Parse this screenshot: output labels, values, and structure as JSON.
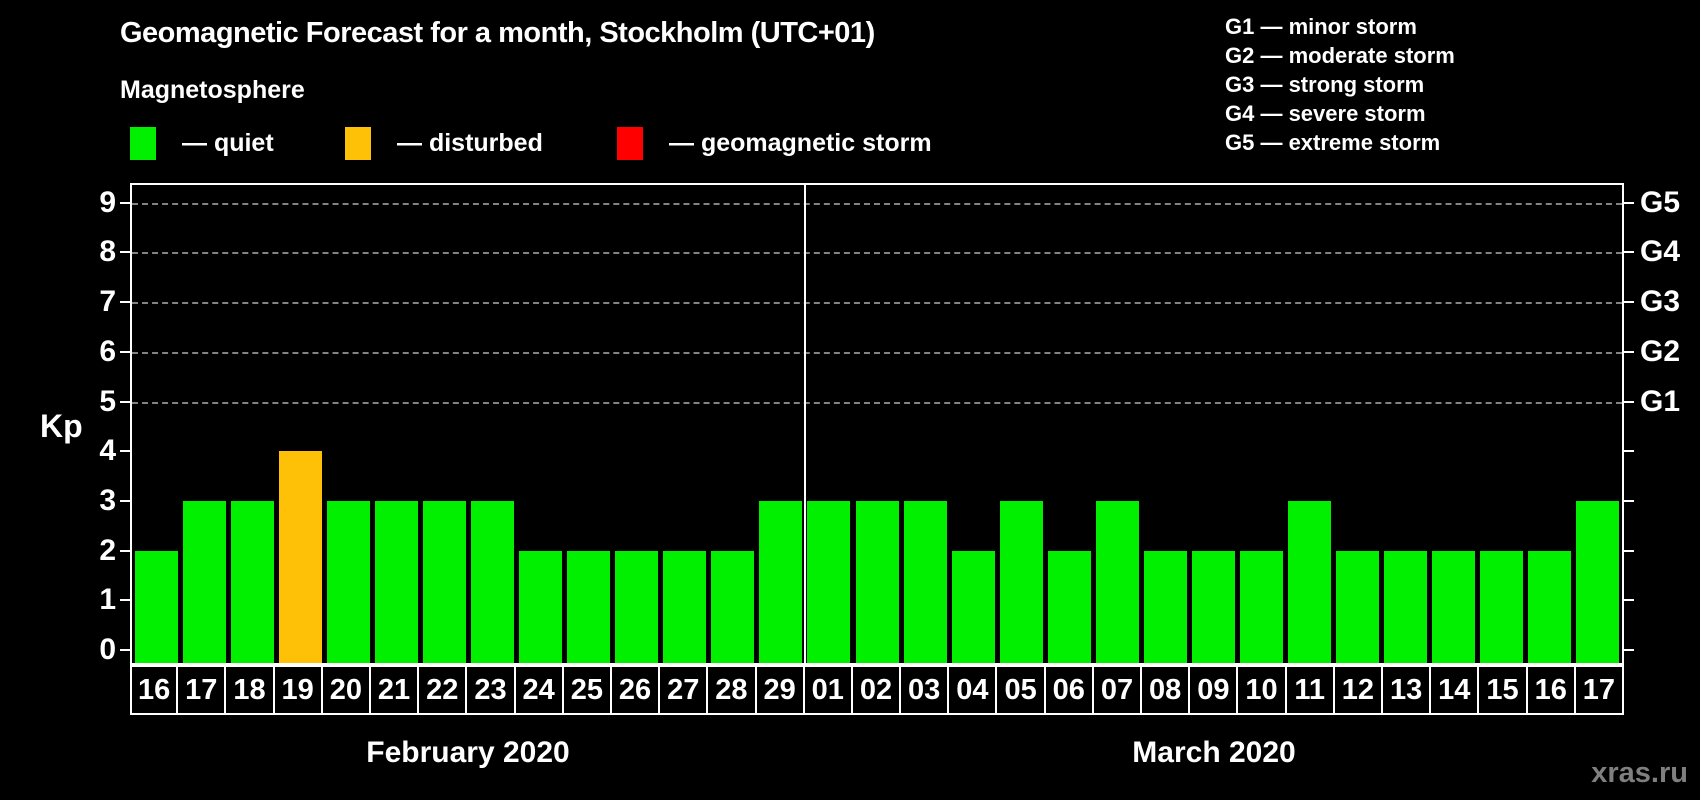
{
  "title": "Geomagnetic Forecast for a month, Stockholm (UTC+01)",
  "subtitle": "Magnetosphere",
  "legend": {
    "items": [
      {
        "label": "— quiet",
        "status": "quiet",
        "color": "#00f000"
      },
      {
        "label": "— disturbed",
        "status": "disturbed",
        "color": "#ffc107"
      },
      {
        "label": "— geomagnetic storm",
        "status": "storm",
        "color": "#ff0000"
      }
    ]
  },
  "g_scale_legend": [
    "G1 — minor storm",
    "G2 — moderate storm",
    "G3 — strong storm",
    "G4 — severe storm",
    "G5 — extreme storm"
  ],
  "watermark": "xras.ru",
  "chart_data": {
    "type": "bar",
    "title": "Geomagnetic Forecast for a month, Stockholm (UTC+01)",
    "ylabel": "Kp",
    "ylim": [
      0,
      9
    ],
    "yticks": [
      0,
      1,
      2,
      3,
      4,
      5,
      6,
      7,
      8,
      9
    ],
    "gridlines_at": [
      5,
      6,
      7,
      8,
      9
    ],
    "grid": "dashed horizontal at storm levels only",
    "right_axis_labels": [
      {
        "label": "G1",
        "kp": 5
      },
      {
        "label": "G2",
        "kp": 6
      },
      {
        "label": "G3",
        "kp": 7
      },
      {
        "label": "G4",
        "kp": 8
      },
      {
        "label": "G5",
        "kp": 9
      }
    ],
    "status_colors": {
      "quiet": "#00f000",
      "disturbed": "#ffc107",
      "storm": "#ff0000"
    },
    "months": [
      {
        "label": "February 2020",
        "days": [
          {
            "day": "16",
            "kp": 2,
            "status": "quiet"
          },
          {
            "day": "17",
            "kp": 3,
            "status": "quiet"
          },
          {
            "day": "18",
            "kp": 3,
            "status": "quiet"
          },
          {
            "day": "19",
            "kp": 4,
            "status": "disturbed"
          },
          {
            "day": "20",
            "kp": 3,
            "status": "quiet"
          },
          {
            "day": "21",
            "kp": 3,
            "status": "quiet"
          },
          {
            "day": "22",
            "kp": 3,
            "status": "quiet"
          },
          {
            "day": "23",
            "kp": 3,
            "status": "quiet"
          },
          {
            "day": "24",
            "kp": 2,
            "status": "quiet"
          },
          {
            "day": "25",
            "kp": 2,
            "status": "quiet"
          },
          {
            "day": "26",
            "kp": 2,
            "status": "quiet"
          },
          {
            "day": "27",
            "kp": 2,
            "status": "quiet"
          },
          {
            "day": "28",
            "kp": 2,
            "status": "quiet"
          },
          {
            "day": "29",
            "kp": 3,
            "status": "quiet"
          }
        ]
      },
      {
        "label": "March 2020",
        "days": [
          {
            "day": "01",
            "kp": 3,
            "status": "quiet"
          },
          {
            "day": "02",
            "kp": 3,
            "status": "quiet"
          },
          {
            "day": "03",
            "kp": 3,
            "status": "quiet"
          },
          {
            "day": "04",
            "kp": 2,
            "status": "quiet"
          },
          {
            "day": "05",
            "kp": 3,
            "status": "quiet"
          },
          {
            "day": "06",
            "kp": 2,
            "status": "quiet"
          },
          {
            "day": "07",
            "kp": 3,
            "status": "quiet"
          },
          {
            "day": "08",
            "kp": 2,
            "status": "quiet"
          },
          {
            "day": "09",
            "kp": 2,
            "status": "quiet"
          },
          {
            "day": "10",
            "kp": 2,
            "status": "quiet"
          },
          {
            "day": "11",
            "kp": 3,
            "status": "quiet"
          },
          {
            "day": "12",
            "kp": 2,
            "status": "quiet"
          },
          {
            "day": "13",
            "kp": 2,
            "status": "quiet"
          },
          {
            "day": "14",
            "kp": 2,
            "status": "quiet"
          },
          {
            "day": "15",
            "kp": 2,
            "status": "quiet"
          },
          {
            "day": "16",
            "kp": 2,
            "status": "quiet"
          },
          {
            "day": "17",
            "kp": 3,
            "status": "quiet"
          }
        ]
      }
    ]
  }
}
